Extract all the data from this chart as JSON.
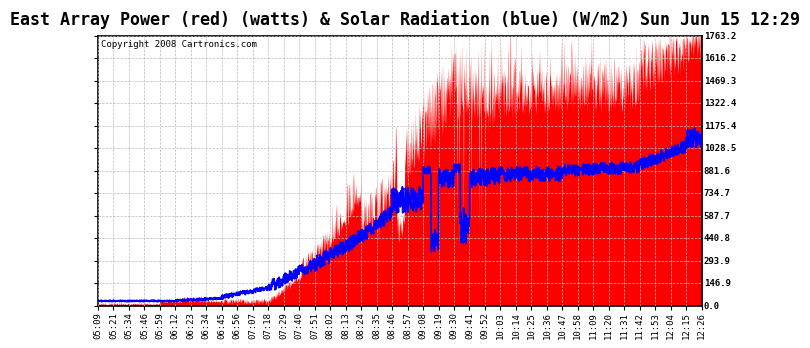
{
  "title": "East Array Power (red) (watts) & Solar Radiation (blue) (W/m2) Sun Jun 15 12:29",
  "copyright": "Copyright 2008 Cartronics.com",
  "background_color": "#ffffff",
  "plot_bg_color": "#ffffff",
  "grid_color": "#bbbbbb",
  "ymin": 0.0,
  "ymax": 1763.2,
  "yticks": [
    0.0,
    146.9,
    293.9,
    440.8,
    587.7,
    734.7,
    881.6,
    1028.5,
    1175.4,
    1322.4,
    1469.3,
    1616.2,
    1763.2
  ],
  "red_color": "#ff0000",
  "blue_color": "#0000ff",
  "title_fontsize": 12,
  "copyright_fontsize": 6.5,
  "tick_fontsize": 6.5,
  "xtick_labels": [
    "05:09",
    "05:21",
    "05:34",
    "05:46",
    "05:59",
    "06:12",
    "06:23",
    "06:34",
    "06:45",
    "06:56",
    "07:07",
    "07:18",
    "07:29",
    "07:40",
    "07:51",
    "08:02",
    "08:13",
    "08:24",
    "08:35",
    "08:46",
    "08:57",
    "09:08",
    "09:19",
    "09:30",
    "09:41",
    "09:52",
    "10:03",
    "10:14",
    "10:25",
    "10:36",
    "10:47",
    "10:58",
    "11:09",
    "11:20",
    "11:31",
    "11:42",
    "11:53",
    "12:04",
    "12:15",
    "12:26"
  ]
}
